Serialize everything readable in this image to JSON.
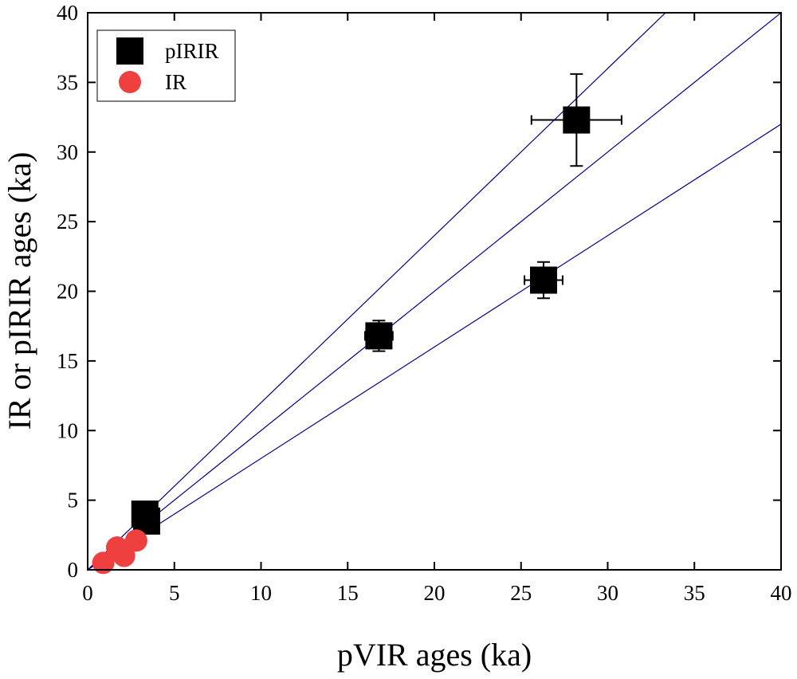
{
  "chart_data": {
    "type": "scatter",
    "x_label": "pVIR ages (ka)",
    "y_label": "IR or pIRIR ages (ka)",
    "xlim": [
      0,
      40
    ],
    "ylim": [
      0,
      40
    ],
    "xticks": [
      0,
      5,
      10,
      15,
      20,
      25,
      30,
      35,
      40
    ],
    "yticks": [
      0,
      5,
      10,
      15,
      20,
      25,
      30,
      35,
      40
    ],
    "legend": "upper left",
    "reference_lines": {
      "color": "#00008b",
      "slopes": [
        1.2,
        1,
        0.8
      ]
    },
    "series": [
      {
        "name": "pIRIR",
        "color": "#000000",
        "marker": "square",
        "x": [
          3.3,
          3.4,
          16.8,
          26.3,
          28.2
        ],
        "values": [
          4.0,
          3.5,
          16.8,
          20.8,
          32.3
        ],
        "x_err": [
          0.3,
          0.3,
          0.8,
          1.1,
          2.6
        ],
        "y_err": [
          0.3,
          0.3,
          1.1,
          1.3,
          3.3
        ]
      },
      {
        "name": "IR",
        "color": "#ef4040",
        "marker": "circle",
        "x": [
          0.9,
          1.7,
          2.1,
          2.8
        ],
        "values": [
          0.5,
          1.6,
          1.0,
          2.1
        ]
      }
    ]
  }
}
